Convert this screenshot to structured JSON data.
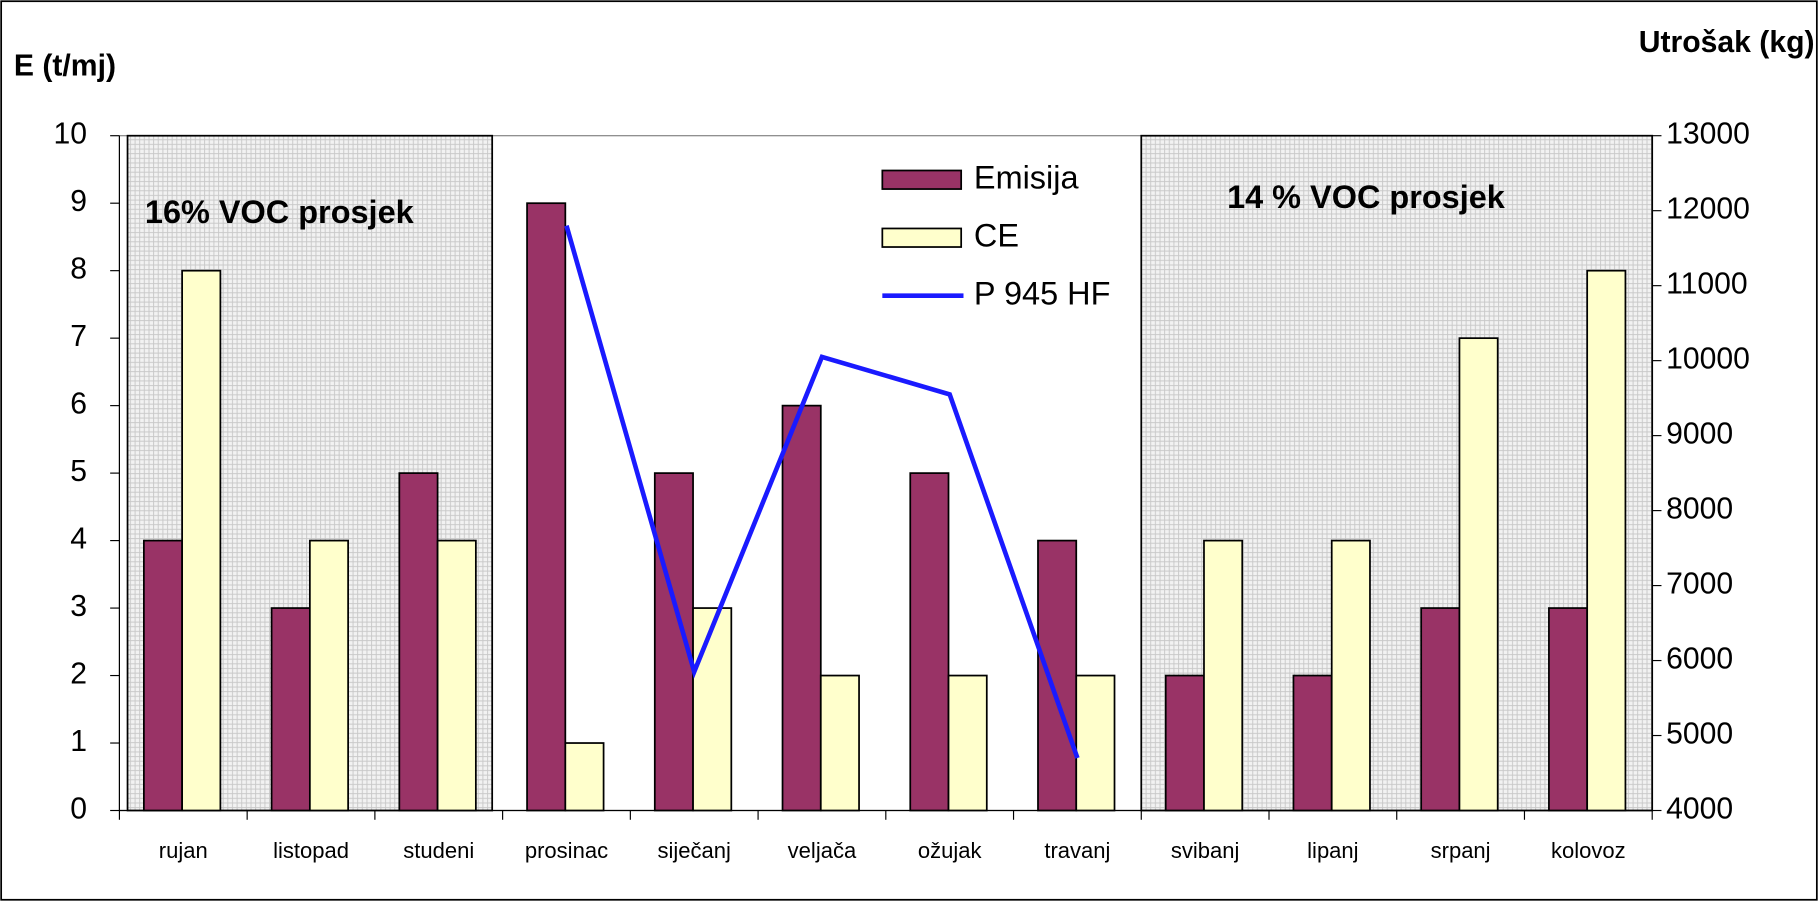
{
  "chart_data": {
    "type": "bar",
    "ylabel": "E (t/mj)",
    "y2label": "Utrošak (kg)",
    "categories": [
      "rujan",
      "listopad",
      "studeni",
      "prosinac",
      "siječanj",
      "veljača",
      "ožujak",
      "travanj",
      "svibanj",
      "lipanj",
      "srpanj",
      "kolovoz"
    ],
    "series": [
      {
        "name": "Emisija",
        "type": "bar",
        "color": "#993366",
        "values": [
          4,
          3,
          5,
          9,
          5,
          6,
          5,
          4,
          2,
          2,
          3,
          3
        ]
      },
      {
        "name": "CE",
        "type": "bar",
        "color": "#ffffcc",
        "values": [
          8,
          4,
          4,
          1,
          3,
          2,
          2,
          2,
          4,
          4,
          7,
          8
        ]
      },
      {
        "name": "P 945 HF",
        "type": "line",
        "axis": "y2",
        "color": "#1a1aff",
        "values": [
          null,
          null,
          null,
          11800,
          5850,
          10050,
          9550,
          4700,
          null,
          null,
          null,
          null
        ]
      }
    ],
    "ylim": [
      0,
      10
    ],
    "yticks": [
      0,
      1,
      2,
      3,
      4,
      5,
      6,
      7,
      8,
      9,
      10
    ],
    "y2lim": [
      4000,
      13000
    ],
    "y2ticks": [
      4000,
      5000,
      6000,
      7000,
      8000,
      9000,
      10000,
      11000,
      12000,
      13000
    ],
    "annotations": [
      {
        "text": "16% VOC prosjek",
        "from": "rujan",
        "to": "studeni"
      },
      {
        "text": "14 % VOC prosjek",
        "from": "svibanj",
        "to": "kolovoz"
      }
    ]
  }
}
